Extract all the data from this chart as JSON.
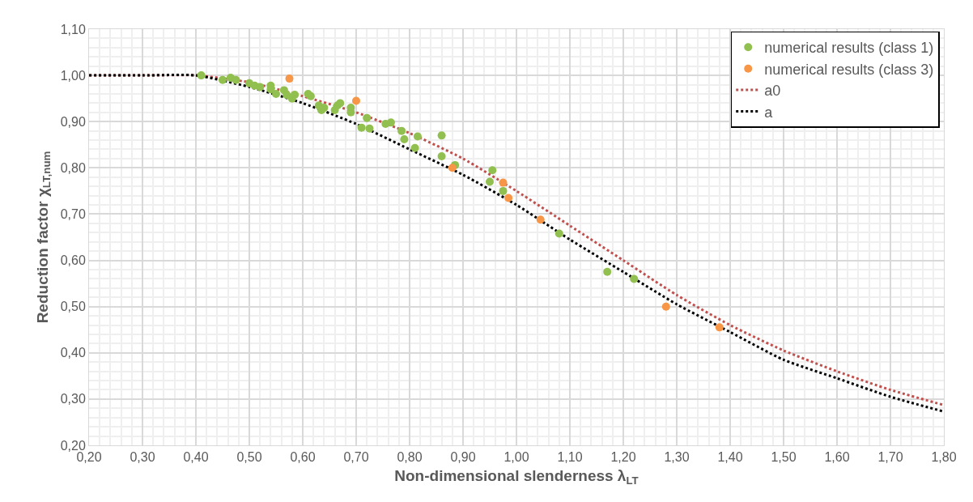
{
  "chart_data": {
    "type": "scatter",
    "xlabel": "Non-dimensional slenderness λ$_{LT}$",
    "ylabel": "Reduction factor χ$_{LT,num}$",
    "xlim": [
      0.2,
      1.8
    ],
    "ylim": [
      0.2,
      1.1
    ],
    "xticks": [
      {
        "value": 0.2,
        "label": "0,20"
      },
      {
        "value": 0.3,
        "label": "0,30"
      },
      {
        "value": 0.4,
        "label": "0,40"
      },
      {
        "value": 0.5,
        "label": "0,50"
      },
      {
        "value": 0.6,
        "label": "0,60"
      },
      {
        "value": 0.7,
        "label": "0,70"
      },
      {
        "value": 0.8,
        "label": "0,80"
      },
      {
        "value": 0.9,
        "label": "0,90"
      },
      {
        "value": 1.0,
        "label": "1,00"
      },
      {
        "value": 1.1,
        "label": "1,10"
      },
      {
        "value": 1.2,
        "label": "1,20"
      },
      {
        "value": 1.3,
        "label": "1,30"
      },
      {
        "value": 1.4,
        "label": "1,40"
      },
      {
        "value": 1.5,
        "label": "1,50"
      },
      {
        "value": 1.6,
        "label": "1,60"
      },
      {
        "value": 1.7,
        "label": "1,70"
      },
      {
        "value": 1.8,
        "label": "1,80"
      }
    ],
    "yticks": [
      {
        "value": 0.2,
        "label": "0,20"
      },
      {
        "value": 0.3,
        "label": "0,30"
      },
      {
        "value": 0.4,
        "label": "0,40"
      },
      {
        "value": 0.5,
        "label": "0,50"
      },
      {
        "value": 0.6,
        "label": "0,60"
      },
      {
        "value": 0.7,
        "label": "0,70"
      },
      {
        "value": 0.8,
        "label": "0,80"
      },
      {
        "value": 0.9,
        "label": "0,90"
      },
      {
        "value": 1.0,
        "label": "1,00"
      },
      {
        "value": 1.1,
        "label": "1,10"
      }
    ],
    "grid": true,
    "legend": "top right",
    "series": [
      {
        "name": "numerical results (class 1)",
        "marker": "circle",
        "color": "#92c050",
        "x": [
          0.41,
          0.45,
          0.465,
          0.475,
          0.5,
          0.51,
          0.52,
          0.54,
          0.54,
          0.55,
          0.565,
          0.57,
          0.58,
          0.585,
          0.61,
          0.615,
          0.63,
          0.635,
          0.64,
          0.66,
          0.665,
          0.67,
          0.69,
          0.69,
          0.71,
          0.72,
          0.725,
          0.755,
          0.765,
          0.785,
          0.79,
          0.81,
          0.815,
          0.86,
          0.86,
          0.885,
          0.95,
          0.955,
          0.975,
          1.08,
          1.17,
          1.22
        ],
        "values": [
          1.0,
          0.99,
          0.995,
          0.99,
          0.983,
          0.978,
          0.975,
          0.978,
          0.97,
          0.96,
          0.968,
          0.958,
          0.95,
          0.958,
          0.96,
          0.955,
          0.935,
          0.925,
          0.93,
          0.925,
          0.935,
          0.94,
          0.93,
          0.92,
          0.887,
          0.908,
          0.885,
          0.895,
          0.898,
          0.88,
          0.862,
          0.843,
          0.868,
          0.87,
          0.825,
          0.806,
          0.77,
          0.795,
          0.75,
          0.658,
          0.575,
          0.56
        ]
      },
      {
        "name": "numerical results (class 3)",
        "marker": "circle",
        "color": "#f79646",
        "x": [
          0.575,
          0.7,
          0.88,
          0.975,
          0.985,
          1.045,
          1.28,
          1.38
        ],
        "values": [
          0.993,
          0.945,
          0.8,
          0.768,
          0.735,
          0.688,
          0.5,
          0.455
        ]
      },
      {
        "name": "a0",
        "type": "line",
        "marker": "none",
        "line_style": "dotted",
        "color": "#c0504d",
        "x": [
          0.2,
          0.3,
          0.4,
          0.5,
          0.6,
          0.7,
          0.8,
          0.9,
          1.0,
          1.1,
          1.2,
          1.3,
          1.4,
          1.5,
          1.6,
          1.7,
          1.8
        ],
        "values": [
          1.0,
          1.0,
          1.0,
          0.985,
          0.955,
          0.92,
          0.875,
          0.82,
          0.75,
          0.675,
          0.6,
          0.525,
          0.46,
          0.405,
          0.36,
          0.32,
          0.287
        ]
      },
      {
        "name": "a",
        "type": "line",
        "marker": "none",
        "line_style": "dotted",
        "color": "#000000",
        "x": [
          0.2,
          0.3,
          0.4,
          0.5,
          0.6,
          0.7,
          0.8,
          0.9,
          1.0,
          1.1,
          1.2,
          1.3,
          1.4,
          1.5,
          1.6,
          1.7,
          1.8
        ],
        "values": [
          1.0,
          1.0,
          1.0,
          0.975,
          0.94,
          0.895,
          0.84,
          0.785,
          0.72,
          0.645,
          0.575,
          0.505,
          0.445,
          0.385,
          0.345,
          0.305,
          0.273
        ]
      }
    ]
  }
}
